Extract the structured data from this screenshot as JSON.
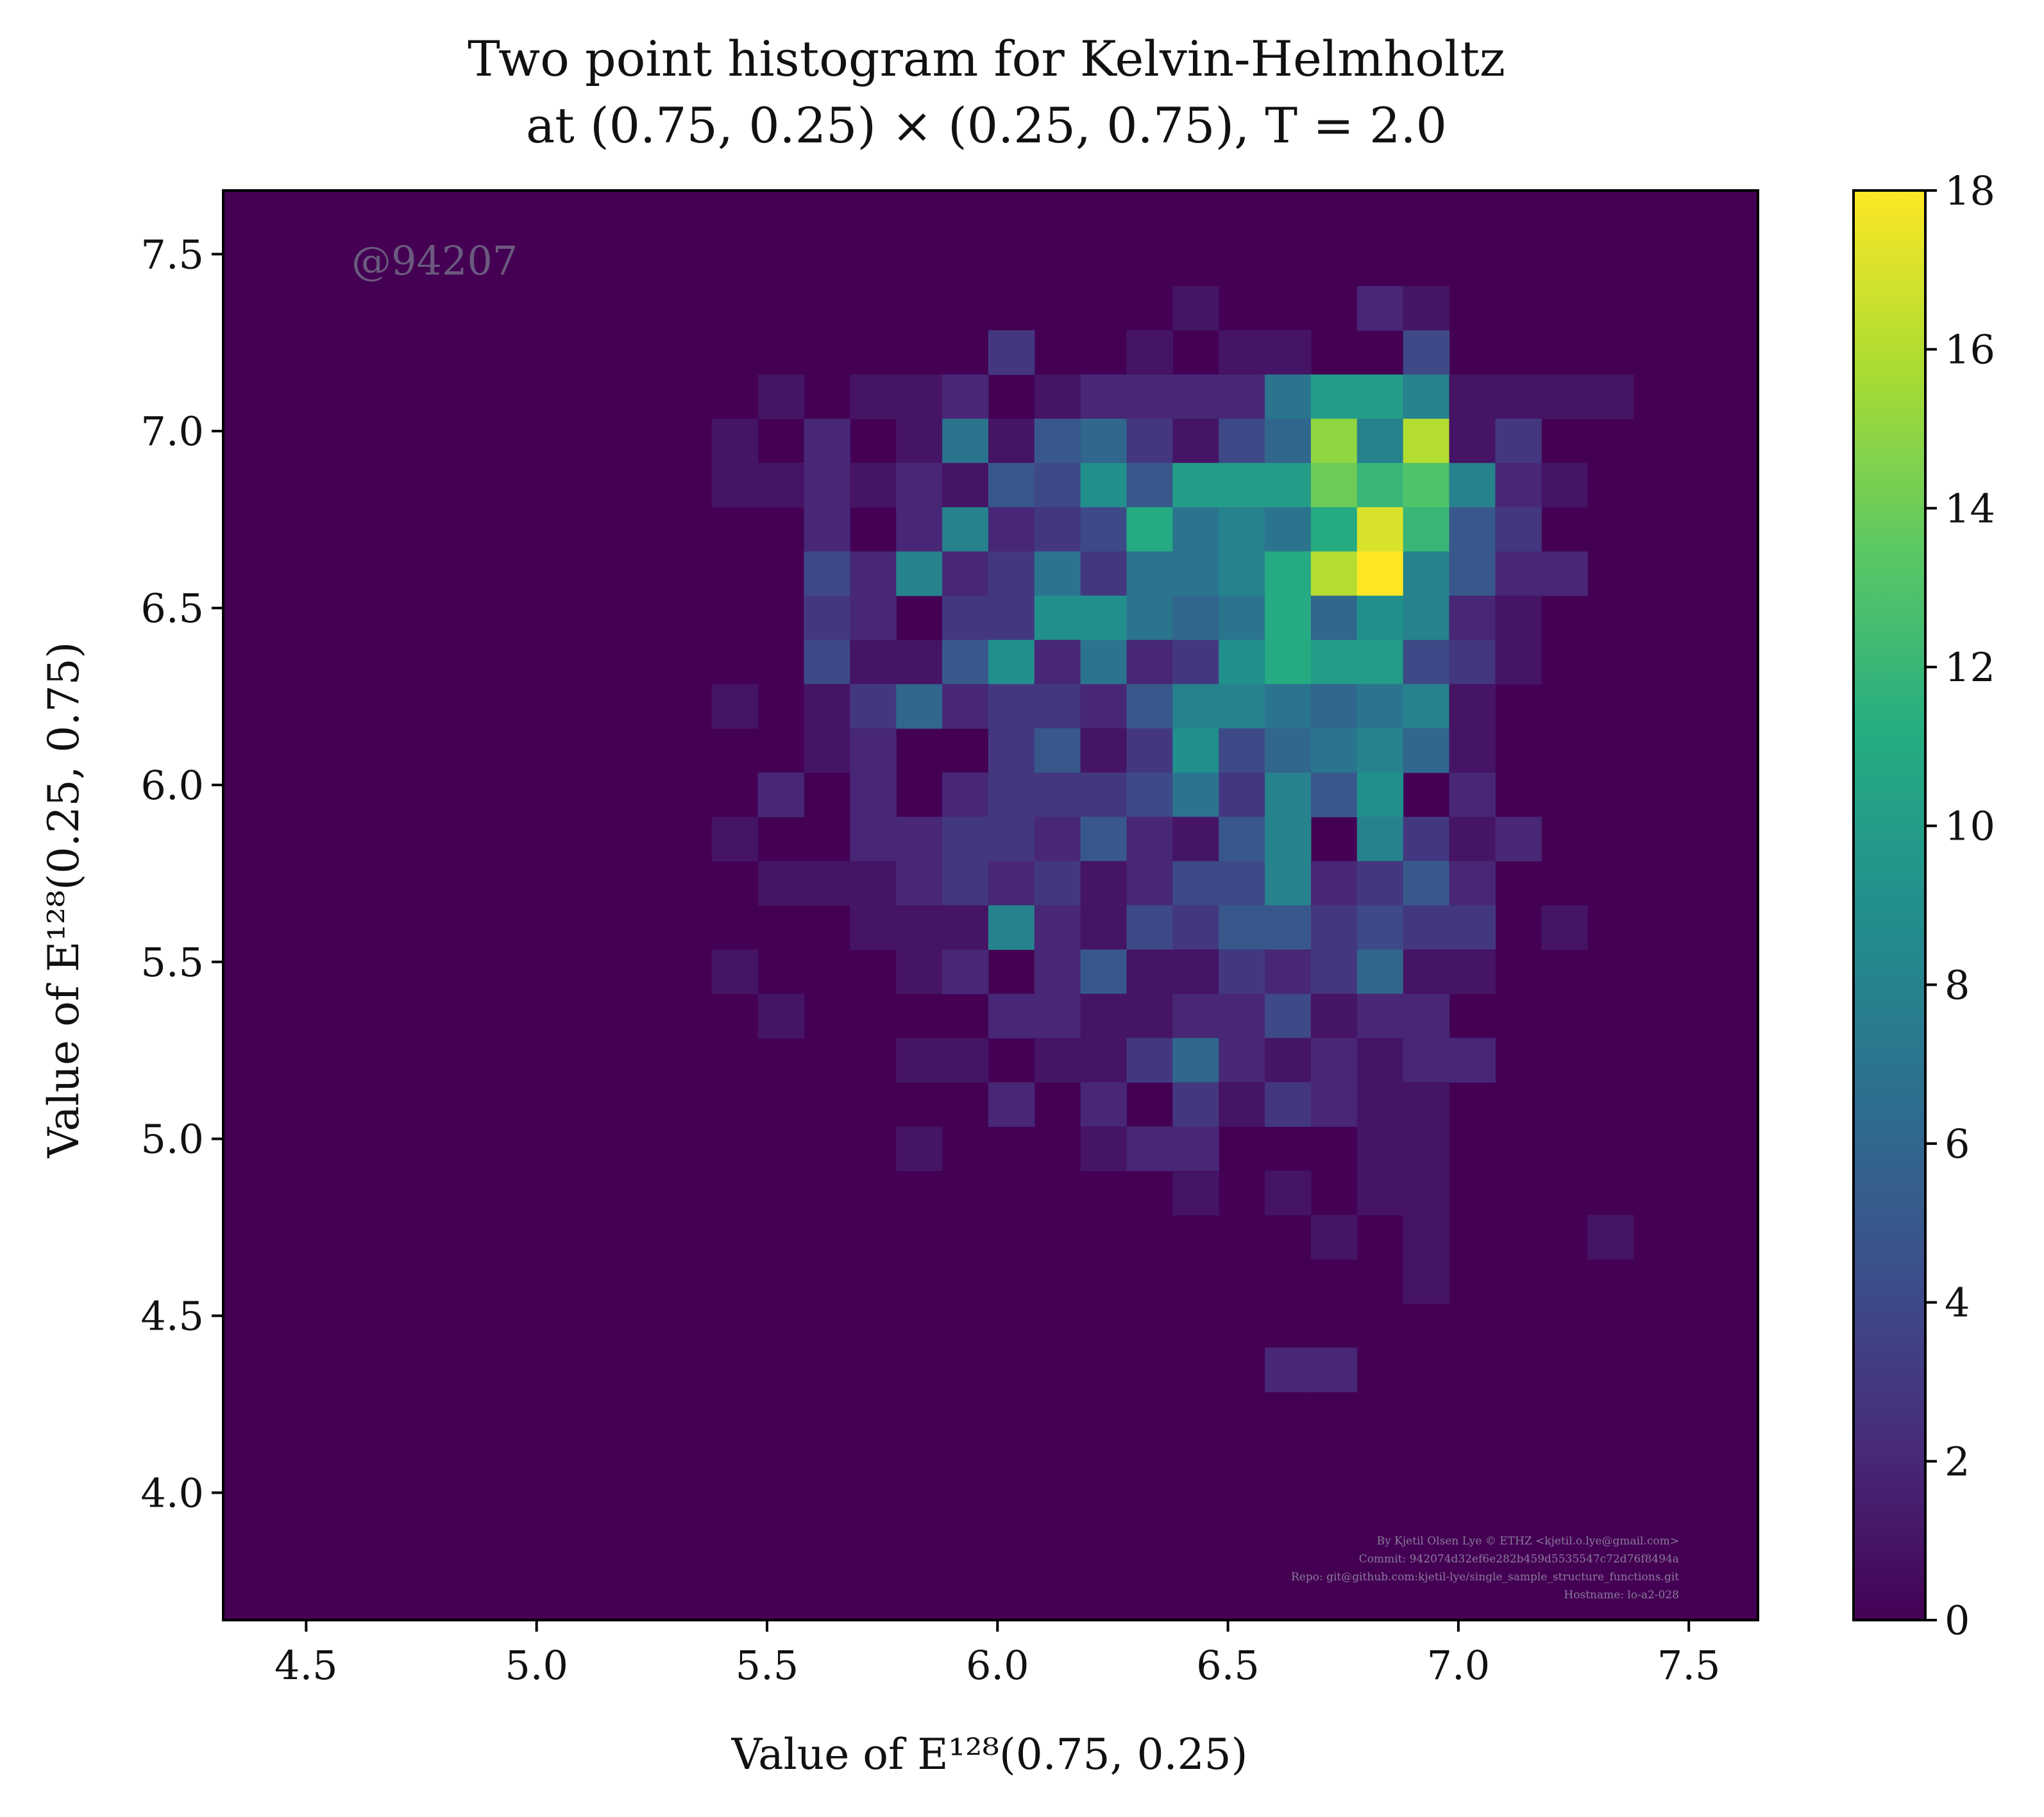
{
  "chart_data": {
    "type": "heatmap",
    "title": "Two point histogram for Kelvin-Helmholtz",
    "subtitle": "at (0.75, 0.25) × (0.25, 0.75), T = 2.0",
    "xlabel": "Value of E¹²⁸(0.75, 0.25)",
    "ylabel": "Value of E¹²⁸(0.25, 0.75)",
    "xlim": [
      4.32,
      7.65
    ],
    "ylim": [
      3.64,
      7.68
    ],
    "xticks": [
      "4.5",
      "5.0",
      "5.5",
      "6.0",
      "6.5",
      "7.0",
      "7.5"
    ],
    "yticks": [
      "4.0",
      "4.5",
      "5.0",
      "5.5",
      "6.0",
      "6.5",
      "7.0",
      "7.5"
    ],
    "colorbar": {
      "colormap": "viridis",
      "range": [
        0,
        18
      ],
      "ticks": [
        "0",
        "2",
        "4",
        "6",
        "8",
        "10",
        "12",
        "14",
        "16",
        "18"
      ]
    },
    "bins": {
      "x_edges_start": 5.38,
      "x_bin_width": 0.1,
      "y_edges_start": 4.16,
      "y_bin_width": 0.125,
      "columns": 20,
      "rows": 26,
      "counts_top_row_first": [
        [
          0,
          0,
          0,
          0,
          0,
          0,
          0,
          0,
          0,
          0,
          1,
          0,
          0,
          0,
          2,
          1,
          0,
          0,
          0,
          0
        ],
        [
          0,
          0,
          0,
          0,
          0,
          0,
          3,
          0,
          0,
          1,
          0,
          1,
          1,
          0,
          0,
          4,
          0,
          0,
          0,
          0
        ],
        [
          0,
          1,
          0,
          1,
          1,
          2,
          0,
          1,
          2,
          2,
          2,
          2,
          7,
          10,
          10,
          8,
          1,
          1,
          1,
          1
        ],
        [
          1,
          0,
          2,
          0,
          1,
          7,
          1,
          5,
          6,
          3,
          1,
          4,
          6,
          15,
          8,
          16,
          1,
          3,
          0,
          0
        ],
        [
          1,
          1,
          2,
          1,
          2,
          1,
          5,
          4,
          9,
          5,
          10,
          10,
          10,
          14,
          12,
          13,
          8,
          2,
          1,
          0
        ],
        [
          0,
          0,
          2,
          0,
          2,
          8,
          2,
          3,
          4,
          11,
          7,
          8,
          7,
          11,
          17,
          12,
          5,
          3,
          0,
          0
        ],
        [
          0,
          0,
          4,
          2,
          8,
          2,
          3,
          7,
          3,
          7,
          7,
          8,
          11,
          16,
          18,
          8,
          5,
          2,
          2,
          0
        ],
        [
          0,
          0,
          3,
          2,
          0,
          3,
          3,
          9,
          9,
          7,
          6,
          7,
          11,
          6,
          9,
          8,
          2,
          1,
          0,
          0
        ],
        [
          0,
          0,
          4,
          1,
          1,
          5,
          9,
          2,
          7,
          2,
          3,
          9,
          11,
          10,
          10,
          4,
          3,
          1,
          0,
          0
        ],
        [
          1,
          0,
          1,
          3,
          6,
          2,
          3,
          3,
          2,
          5,
          8,
          8,
          7,
          6,
          7,
          8,
          1,
          0,
          0,
          0
        ],
        [
          0,
          0,
          1,
          2,
          0,
          0,
          3,
          5,
          1,
          3,
          9,
          4,
          6,
          7,
          8,
          6,
          1,
          0,
          0,
          0
        ],
        [
          0,
          2,
          0,
          2,
          0,
          2,
          3,
          3,
          3,
          4,
          7,
          3,
          8,
          5,
          9,
          0,
          2,
          0,
          0,
          0
        ],
        [
          1,
          0,
          0,
          2,
          2,
          3,
          3,
          2,
          5,
          2,
          1,
          5,
          8,
          0,
          8,
          3,
          1,
          2,
          0,
          0
        ],
        [
          0,
          1,
          1,
          1,
          2,
          3,
          2,
          3,
          1,
          2,
          4,
          4,
          8,
          2,
          3,
          5,
          2,
          0,
          0,
          0
        ],
        [
          0,
          0,
          0,
          1,
          1,
          1,
          8,
          2,
          1,
          4,
          3,
          5,
          5,
          3,
          4,
          3,
          3,
          0,
          1,
          0
        ],
        [
          1,
          0,
          0,
          0,
          1,
          2,
          0,
          2,
          5,
          1,
          1,
          3,
          2,
          3,
          6,
          1,
          1,
          0,
          0,
          0
        ],
        [
          0,
          1,
          0,
          0,
          0,
          0,
          2,
          2,
          1,
          1,
          2,
          2,
          4,
          1,
          2,
          2,
          0,
          0,
          0,
          0
        ],
        [
          0,
          0,
          0,
          0,
          1,
          1,
          0,
          1,
          1,
          3,
          6,
          2,
          1,
          2,
          1,
          2,
          2,
          0,
          0,
          0
        ],
        [
          0,
          0,
          0,
          0,
          0,
          0,
          2,
          0,
          2,
          0,
          3,
          1,
          3,
          2,
          1,
          1,
          0,
          0,
          0,
          0
        ],
        [
          0,
          0,
          0,
          0,
          1,
          0,
          0,
          0,
          1,
          2,
          2,
          0,
          0,
          0,
          1,
          1,
          0,
          0,
          0,
          0
        ],
        [
          0,
          0,
          0,
          0,
          0,
          0,
          0,
          0,
          0,
          0,
          1,
          0,
          1,
          0,
          1,
          1,
          0,
          0,
          0,
          0
        ],
        [
          0,
          0,
          0,
          0,
          0,
          0,
          0,
          0,
          0,
          0,
          0,
          0,
          0,
          1,
          0,
          1,
          0,
          0,
          0,
          1
        ],
        [
          0,
          0,
          0,
          0,
          0,
          0,
          0,
          0,
          0,
          0,
          0,
          0,
          0,
          0,
          0,
          1,
          0,
          0,
          0,
          0
        ],
        [
          0,
          0,
          0,
          0,
          0,
          0,
          0,
          0,
          0,
          0,
          0,
          0,
          0,
          0,
          0,
          0,
          0,
          0,
          0,
          0
        ],
        [
          0,
          0,
          0,
          0,
          0,
          0,
          0,
          0,
          0,
          0,
          0,
          0,
          2,
          2,
          0,
          0,
          0,
          0,
          0,
          0
        ],
        [
          0,
          0,
          0,
          0,
          0,
          0,
          0,
          0,
          0,
          0,
          0,
          0,
          0,
          0,
          0,
          0,
          0,
          0,
          0,
          0
        ]
      ]
    }
  },
  "watermark": "@94207",
  "credits": [
    "By Kjetil Olsen Lye © ETHZ <kjetil.o.lye@gmail.com>",
    "Commit: 942074d32ef6e282b459d5535547c72d76f8494a",
    "Repo: git@github.com:kjetil-lye/single_sample_structure_functions.git",
    "Hostname: lo-a2-028"
  ]
}
